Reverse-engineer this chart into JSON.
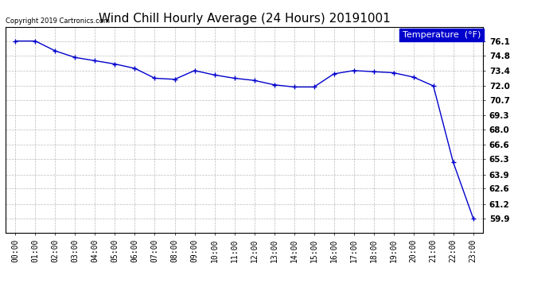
{
  "title": "Wind Chill Hourly Average (24 Hours) 20191001",
  "copyright": "Copyright 2019 Cartronics.com",
  "legend_label": "Temperature  (°F)",
  "x_labels": [
    "00:00",
    "01:00",
    "02:00",
    "03:00",
    "04:00",
    "05:00",
    "06:00",
    "07:00",
    "08:00",
    "09:00",
    "10:00",
    "11:00",
    "12:00",
    "13:00",
    "14:00",
    "15:00",
    "16:00",
    "17:00",
    "18:00",
    "19:00",
    "20:00",
    "21:00",
    "22:00",
    "23:00"
  ],
  "y_values": [
    76.1,
    76.1,
    75.2,
    74.6,
    74.3,
    74.0,
    73.6,
    72.7,
    72.6,
    73.4,
    73.0,
    72.7,
    72.5,
    72.1,
    71.9,
    71.9,
    73.1,
    73.4,
    73.3,
    73.2,
    72.8,
    72.0,
    65.0,
    59.9
  ],
  "ylim_min": 58.6,
  "ylim_max": 77.4,
  "yticks": [
    59.9,
    61.2,
    62.6,
    63.9,
    65.3,
    66.6,
    68.0,
    69.3,
    70.7,
    72.0,
    73.4,
    74.8,
    76.1
  ],
  "line_color": "#0000cc",
  "marker_color": "#0000cc",
  "bg_color": "#ffffff",
  "plot_bg_color": "#ffffff",
  "grid_color": "#aaaaaa",
  "title_fontsize": 11,
  "tick_fontsize": 7,
  "copyright_fontsize": 6,
  "legend_bg": "#0000cc",
  "legend_text_color": "#ffffff",
  "legend_fontsize": 8
}
